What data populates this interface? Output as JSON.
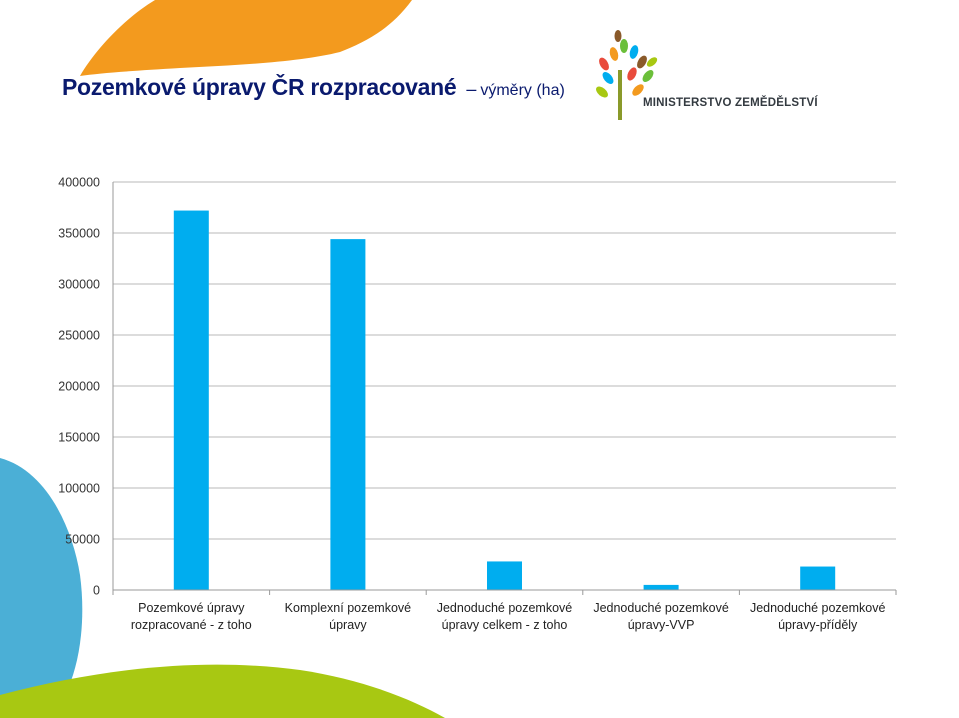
{
  "slide": {
    "title_main": "Pozemkové úpravy ČR  rozpracované",
    "title_dash": "–",
    "title_sub": "výměry (ha)",
    "logo_text": "MINISTERSTVO ZEMĚDĚLSTVÍ",
    "colors": {
      "title": "#0a1a6e",
      "bar": "#00adef",
      "decor_orange": "#f39a1e",
      "decor_blue": "#4bafd6",
      "decor_green": "#a8c812",
      "gridline": "#d0d0d0"
    }
  },
  "chart_data": {
    "type": "bar",
    "categories": [
      [
        "Pozemkové úpravy",
        "rozpracované - z toho"
      ],
      [
        "Komplexní pozemkové",
        "úpravy"
      ],
      [
        "Jednoduché pozemkové",
        "úpravy celkem -  z toho"
      ],
      [
        "Jednoduché pozemkové",
        "úpravy-VVP"
      ],
      [
        "Jednoduché pozemkové",
        "úpravy-příděly"
      ]
    ],
    "values": [
      372000,
      344000,
      28000,
      5000,
      23000
    ],
    "ylim": [
      0,
      400000
    ],
    "yticks": [
      "0",
      "50000",
      "100000",
      "150000",
      "200000",
      "250000",
      "300000",
      "350000",
      "400000"
    ],
    "grid": true,
    "legend": "none"
  }
}
